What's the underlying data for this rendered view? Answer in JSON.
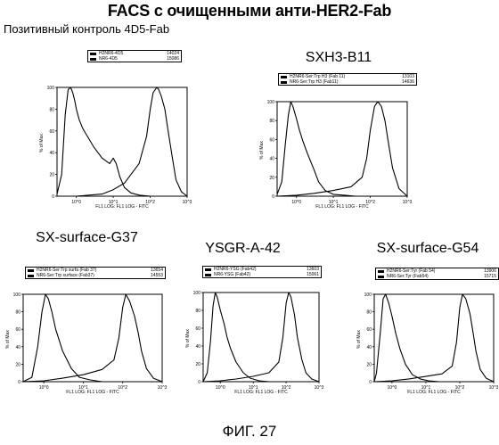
{
  "header": {
    "title": "FACS с очищенными анти-HER2-Fab",
    "subtitle": "Позитивный контроль 4D5-Fab"
  },
  "caption": "ФИГ. 27",
  "chart_data": [
    {
      "type": "line",
      "label": "",
      "legend": [
        {
          "name": "H2NR6-4D5",
          "count": "14024"
        },
        {
          "name": "NR6-4D5",
          "count": "15086"
        }
      ],
      "xlabel": "FL1 LOG: FL1 LOG - FITC",
      "ylabel": "% of Max",
      "x_ticks": [
        "10^0",
        "10^1",
        "10^2",
        "10^3"
      ],
      "y_ticks": [
        "0",
        "20",
        "40",
        "60",
        "80",
        "100"
      ],
      "xscale": "log",
      "xlim": [
        0.3,
        1000
      ],
      "ylim": [
        0,
        100
      ],
      "series": [
        {
          "name": "NR6-4D5",
          "x": [
            0.3,
            0.4,
            0.5,
            0.6,
            0.7,
            0.8,
            0.9,
            1.0,
            1.2,
            1.5,
            2,
            3,
            5,
            8,
            10,
            12,
            15,
            20,
            30,
            50,
            100,
            1000
          ],
          "y": [
            2,
            20,
            75,
            98,
            100,
            95,
            88,
            80,
            70,
            62,
            55,
            45,
            35,
            30,
            35,
            30,
            18,
            8,
            3,
            1,
            0,
            0
          ]
        },
        {
          "name": "H2NR6-4D5",
          "x": [
            0.3,
            1,
            5,
            10,
            20,
            50,
            80,
            100,
            120,
            150,
            170,
            200,
            250,
            300,
            400,
            500,
            700,
            1000
          ],
          "y": [
            0,
            0,
            2,
            6,
            12,
            30,
            55,
            80,
            95,
            100,
            98,
            92,
            80,
            62,
            35,
            15,
            4,
            0
          ]
        }
      ]
    },
    {
      "type": "line",
      "label": "SXH3-B11",
      "legend": [
        {
          "name": "H2NR6-Ser:Trp H3 (Fab 11)",
          "count": "13103"
        },
        {
          "name": "NR6-Ser:Trp H3 (Fab11)",
          "count": "14636"
        }
      ],
      "xlabel": "FL1 LOG: FL1 LOG - FITC",
      "ylabel": "% of Max",
      "x_ticks": [
        "10^0",
        "10^1",
        "10^2",
        "10^3"
      ],
      "y_ticks": [
        "0",
        "20",
        "40",
        "60",
        "80",
        "100"
      ],
      "xscale": "log",
      "xlim": [
        0.3,
        1000
      ],
      "ylim": [
        0,
        100
      ],
      "series": [
        {
          "name": "NR6-Ser:Trp H3 (Fab11)",
          "x": [
            0.3,
            0.4,
            0.5,
            0.6,
            0.7,
            0.8,
            1,
            1.2,
            1.5,
            2,
            3,
            4,
            6,
            10,
            20,
            40,
            1000
          ],
          "y": [
            2,
            15,
            55,
            85,
            100,
            95,
            82,
            70,
            58,
            45,
            28,
            15,
            6,
            2,
            1,
            0,
            0
          ]
        },
        {
          "name": "H2NR6-Ser:Trp H3 (Fab 11)",
          "x": [
            0.3,
            1,
            3,
            10,
            30,
            60,
            80,
            100,
            130,
            160,
            200,
            250,
            300,
            400,
            600,
            1000
          ],
          "y": [
            0,
            1,
            3,
            6,
            10,
            20,
            40,
            70,
            95,
            100,
            95,
            80,
            60,
            30,
            8,
            0
          ]
        }
      ]
    },
    {
      "type": "line",
      "label": "SX-surface-G37",
      "legend": [
        {
          "name": "H2NR6-Ser:Trp surfa (Fab 37)",
          "count": "13654"
        },
        {
          "name": "NR6-Ser:Trp surface (Fab37)",
          "count": "14553"
        }
      ],
      "xlabel": "FL1 LOG: FL1 LOG - FITC",
      "ylabel": "% of Max",
      "x_ticks": [
        "10^0",
        "10^1",
        "10^2",
        "10^3"
      ],
      "y_ticks": [
        "0",
        "20",
        "40",
        "60",
        "80",
        "100"
      ],
      "xscale": "log",
      "xlim": [
        0.3,
        1000
      ],
      "ylim": [
        0,
        100
      ],
      "series": [
        {
          "name": "NR6-Ser:Trp surface (Fab37)",
          "x": [
            0.3,
            0.5,
            0.7,
            0.9,
            1.1,
            1.3,
            1.6,
            2,
            3,
            5,
            8,
            15,
            30,
            1000
          ],
          "y": [
            0,
            5,
            40,
            80,
            100,
            95,
            80,
            60,
            35,
            15,
            5,
            2,
            0,
            0
          ]
        },
        {
          "name": "H2NR6-Ser:Trp surfa (Fab 37)",
          "x": [
            0.3,
            1,
            3,
            10,
            30,
            60,
            80,
            100,
            120,
            150,
            200,
            250,
            300,
            400,
            600,
            1000
          ],
          "y": [
            0,
            1,
            4,
            8,
            14,
            25,
            50,
            85,
            100,
            92,
            75,
            55,
            35,
            15,
            4,
            0
          ]
        }
      ]
    },
    {
      "type": "line",
      "label": "YSGR-A-42",
      "legend": [
        {
          "name": "H2NR6-YSG (Fab42)",
          "count": "13603"
        },
        {
          "name": "NR6-YSG (Fab42)",
          "count": "15061"
        }
      ],
      "xlabel": "FL1 LOG: FL1 LOG - FITC",
      "ylabel": "% of Max",
      "x_ticks": [
        "10^0",
        "10^1",
        "10^2",
        "10^3"
      ],
      "y_ticks": [
        "0",
        "20",
        "40",
        "60",
        "80",
        "100"
      ],
      "xscale": "log",
      "xlim": [
        0.3,
        1000
      ],
      "ylim": [
        0,
        100
      ],
      "series": [
        {
          "name": "NR6-YSG (Fab42)",
          "x": [
            0.3,
            0.4,
            0.5,
            0.6,
            0.7,
            0.8,
            1,
            1.3,
            1.6,
            2,
            3,
            5,
            8,
            15,
            30,
            1000
          ],
          "y": [
            0,
            10,
            45,
            85,
            100,
            95,
            80,
            65,
            50,
            38,
            22,
            10,
            4,
            1,
            0,
            0
          ]
        },
        {
          "name": "H2NR6-YSG (Fab42)",
          "x": [
            0.3,
            1,
            3,
            10,
            30,
            60,
            80,
            100,
            120,
            140,
            180,
            220,
            300,
            400,
            600,
            1000
          ],
          "y": [
            0,
            1,
            3,
            6,
            10,
            22,
            50,
            88,
            100,
            95,
            75,
            50,
            25,
            10,
            3,
            0
          ]
        }
      ]
    },
    {
      "type": "line",
      "label": "SX-surface-G54",
      "legend": [
        {
          "name": "H2NR6-Ser:Tyr (Fab 54)",
          "count": "13906"
        },
        {
          "name": "NR6-Ser:Tyr (Fab54)",
          "count": "15715"
        }
      ],
      "xlabel": "FL1 LOG: FL1 LOG - FITC",
      "ylabel": "% of Max",
      "x_ticks": [
        "10^0",
        "10^1",
        "10^2",
        "10^3"
      ],
      "y_ticks": [
        "0",
        "20",
        "40",
        "60",
        "80",
        "100"
      ],
      "xscale": "log",
      "xlim": [
        0.3,
        1000
      ],
      "ylim": [
        0,
        100
      ],
      "series": [
        {
          "name": "NR6-Ser:Tyr (Fab54)",
          "x": [
            0.3,
            0.35,
            0.45,
            0.55,
            0.65,
            0.8,
            1,
            1.3,
            1.7,
            2.5,
            4,
            7,
            12,
            25,
            1000
          ],
          "y": [
            0,
            10,
            55,
            95,
            100,
            90,
            75,
            55,
            38,
            20,
            8,
            3,
            1,
            0,
            0
          ]
        },
        {
          "name": "H2NR6-Ser:Tyr (Fab 54)",
          "x": [
            0.3,
            1,
            3,
            10,
            30,
            60,
            80,
            100,
            120,
            150,
            200,
            250,
            300,
            400,
            600,
            1000
          ],
          "y": [
            0,
            1,
            3,
            6,
            9,
            18,
            45,
            85,
            100,
            95,
            78,
            55,
            35,
            14,
            4,
            0
          ]
        }
      ]
    }
  ]
}
